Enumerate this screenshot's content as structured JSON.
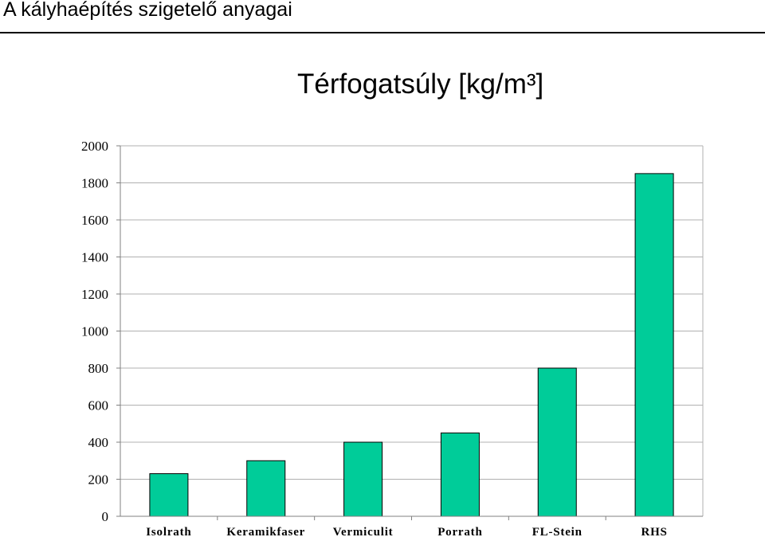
{
  "page": {
    "title": "A kályhaépítés szigetelő anyagai"
  },
  "chart_data": {
    "type": "bar",
    "title": "Térfogatsúly [kg/m³]",
    "categories": [
      "Isolrath",
      "Keramikfaser",
      "Vermiculit",
      "Porrath",
      "FL-Stein",
      "RHS"
    ],
    "values": [
      230,
      300,
      400,
      450,
      800,
      1850
    ],
    "ylim": [
      0,
      2000
    ],
    "yticks": [
      0,
      200,
      400,
      600,
      800,
      1000,
      1200,
      1400,
      1600,
      1800,
      2000
    ],
    "grid": true,
    "legend": "none",
    "colors": {
      "bar": "#00cc99",
      "bar_edge": "#000000",
      "grid": "#b0b0b0",
      "axis": "#808080"
    }
  }
}
